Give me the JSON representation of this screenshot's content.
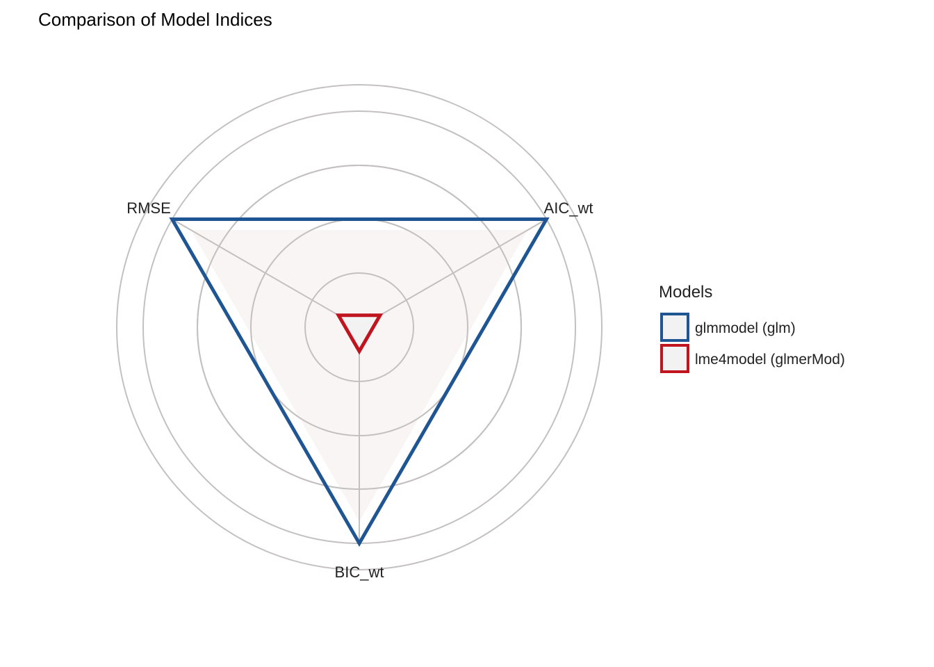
{
  "chart_data": {
    "type": "radar",
    "title": "Comparison of Model Indices",
    "axes": [
      "AIC_wt",
      "BIC_wt",
      "RMSE"
    ],
    "range": [
      0,
      1
    ],
    "grid": true,
    "grid_rings": 5,
    "legend_title": "Models",
    "legend_position": "right",
    "series": [
      {
        "name": "glmmodel (glm)",
        "values": [
          0.9,
          0.9,
          0.9
        ],
        "color": "#1f5593",
        "fill": "#f2f2f2"
      },
      {
        "name": "lme4model (glmerMod)",
        "values": [
          0.1,
          0.1,
          0.1
        ],
        "color": "#c0141f",
        "fill": "#f2f2f2"
      }
    ]
  }
}
